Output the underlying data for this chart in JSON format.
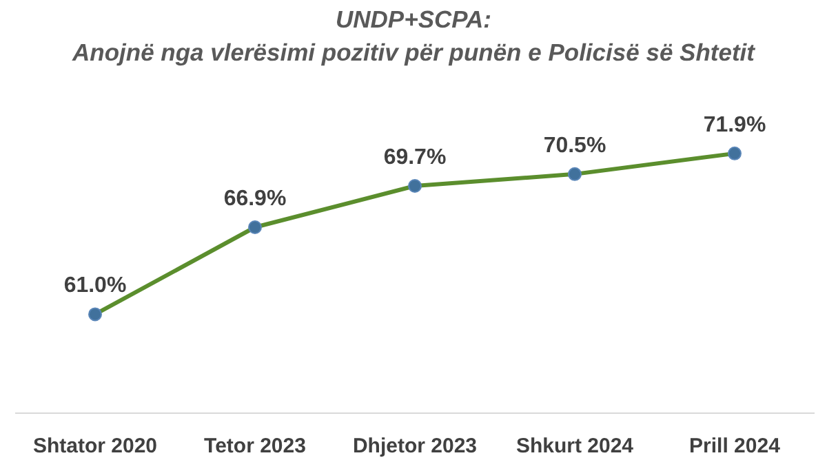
{
  "chart_data": {
    "type": "line",
    "title": "UNDP+SCPA:\nAnojnë nga vlerësimi pozitiv për punën e Policisë së Shtetit",
    "categories": [
      "Shtator 2020",
      "Tetor 2023",
      "Dhjetor 2023",
      "Shkurt 2024",
      "Prill 2024"
    ],
    "series": [
      {
        "color": "#5b8e2d",
        "values": [
          61.0,
          66.9,
          69.7,
          70.5,
          71.9
        ],
        "value_labels": [
          "61.0%",
          "66.9%",
          "69.7%",
          "70.5%",
          "71.9%"
        ]
      }
    ],
    "marker": "circle",
    "line_style": "solid",
    "grid": false,
    "legend": false
  }
}
